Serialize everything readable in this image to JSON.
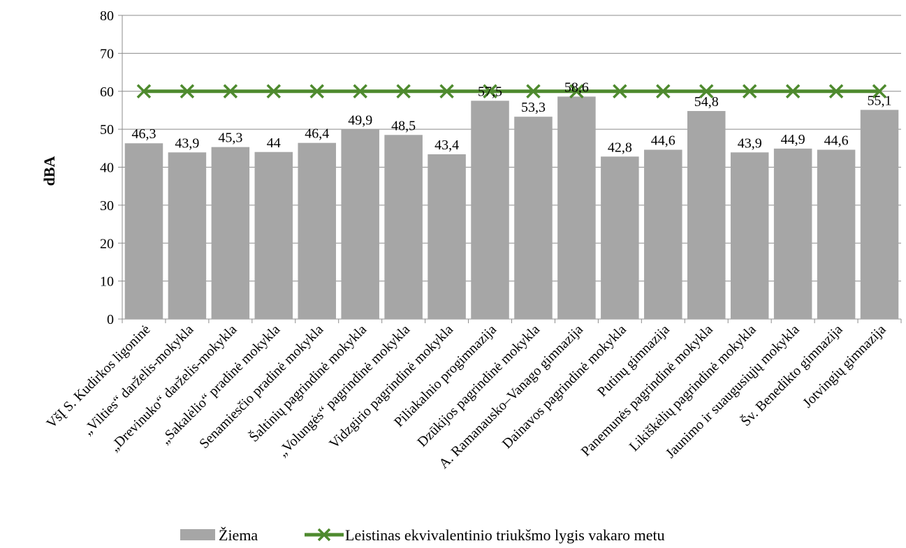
{
  "chart_data": {
    "type": "bar",
    "ylabel": "dBA",
    "xlabel": "",
    "ylim": [
      0,
      80
    ],
    "yticks": [
      0,
      10,
      20,
      30,
      40,
      50,
      60,
      70,
      80
    ],
    "grid": true,
    "legend_position": "bottom",
    "categories": [
      "VšĮ S. Kudirkos ligoninė",
      "„Vilties“ darželis-mokykla",
      "„Drevinuko“ darželis-mokykla",
      "„Sakalėlio“ pradinė mokykla",
      "Senamiesčio pradinė mokykla",
      "Šaltinių pagrindinė mokykla",
      "„Volungės“  pagrindinė mokykla",
      "Vidzgirio pagrindinė mokykla",
      "Piliakalnio progimnazija",
      "Dzūkijos pagrindinė mokykla",
      "A. Ramanausko–Vanago gimnazija",
      "Dainavos pagrindinė mokykla",
      "Putinų gimnazija",
      "Panemunės pagrindinė mokykla",
      "Likiškėlių pagrindinė mokykla",
      "Jaunimo ir suaugusiųjų mokykla",
      "Šv. Benedikto gimnazija",
      "Jotvingių gimnazija"
    ],
    "series": [
      {
        "name": "Žiema",
        "kind": "bar",
        "color": "#a6a6a6",
        "values": [
          46.3,
          43.9,
          45.3,
          44,
          46.4,
          49.9,
          48.5,
          43.4,
          57.5,
          53.3,
          58.6,
          42.8,
          44.6,
          54.8,
          43.9,
          44.9,
          44.6,
          55.1
        ],
        "labels": [
          "46,3",
          "43,9",
          "45,3",
          "44",
          "46,4",
          "49,9",
          "48,5",
          "43,4",
          "57,5",
          "53,3",
          "58,6",
          "42,8",
          "44,6",
          "54,8",
          "43,9",
          "44,9",
          "44,6",
          "55,1"
        ]
      },
      {
        "name": "Leistinas ekvivalentinio triukšmo lygis vakaro metu",
        "kind": "line",
        "marker": "x",
        "color": "#4e8a2e",
        "values": [
          60,
          60,
          60,
          60,
          60,
          60,
          60,
          60,
          60,
          60,
          60,
          60,
          60,
          60,
          60,
          60,
          60,
          60
        ]
      }
    ]
  }
}
